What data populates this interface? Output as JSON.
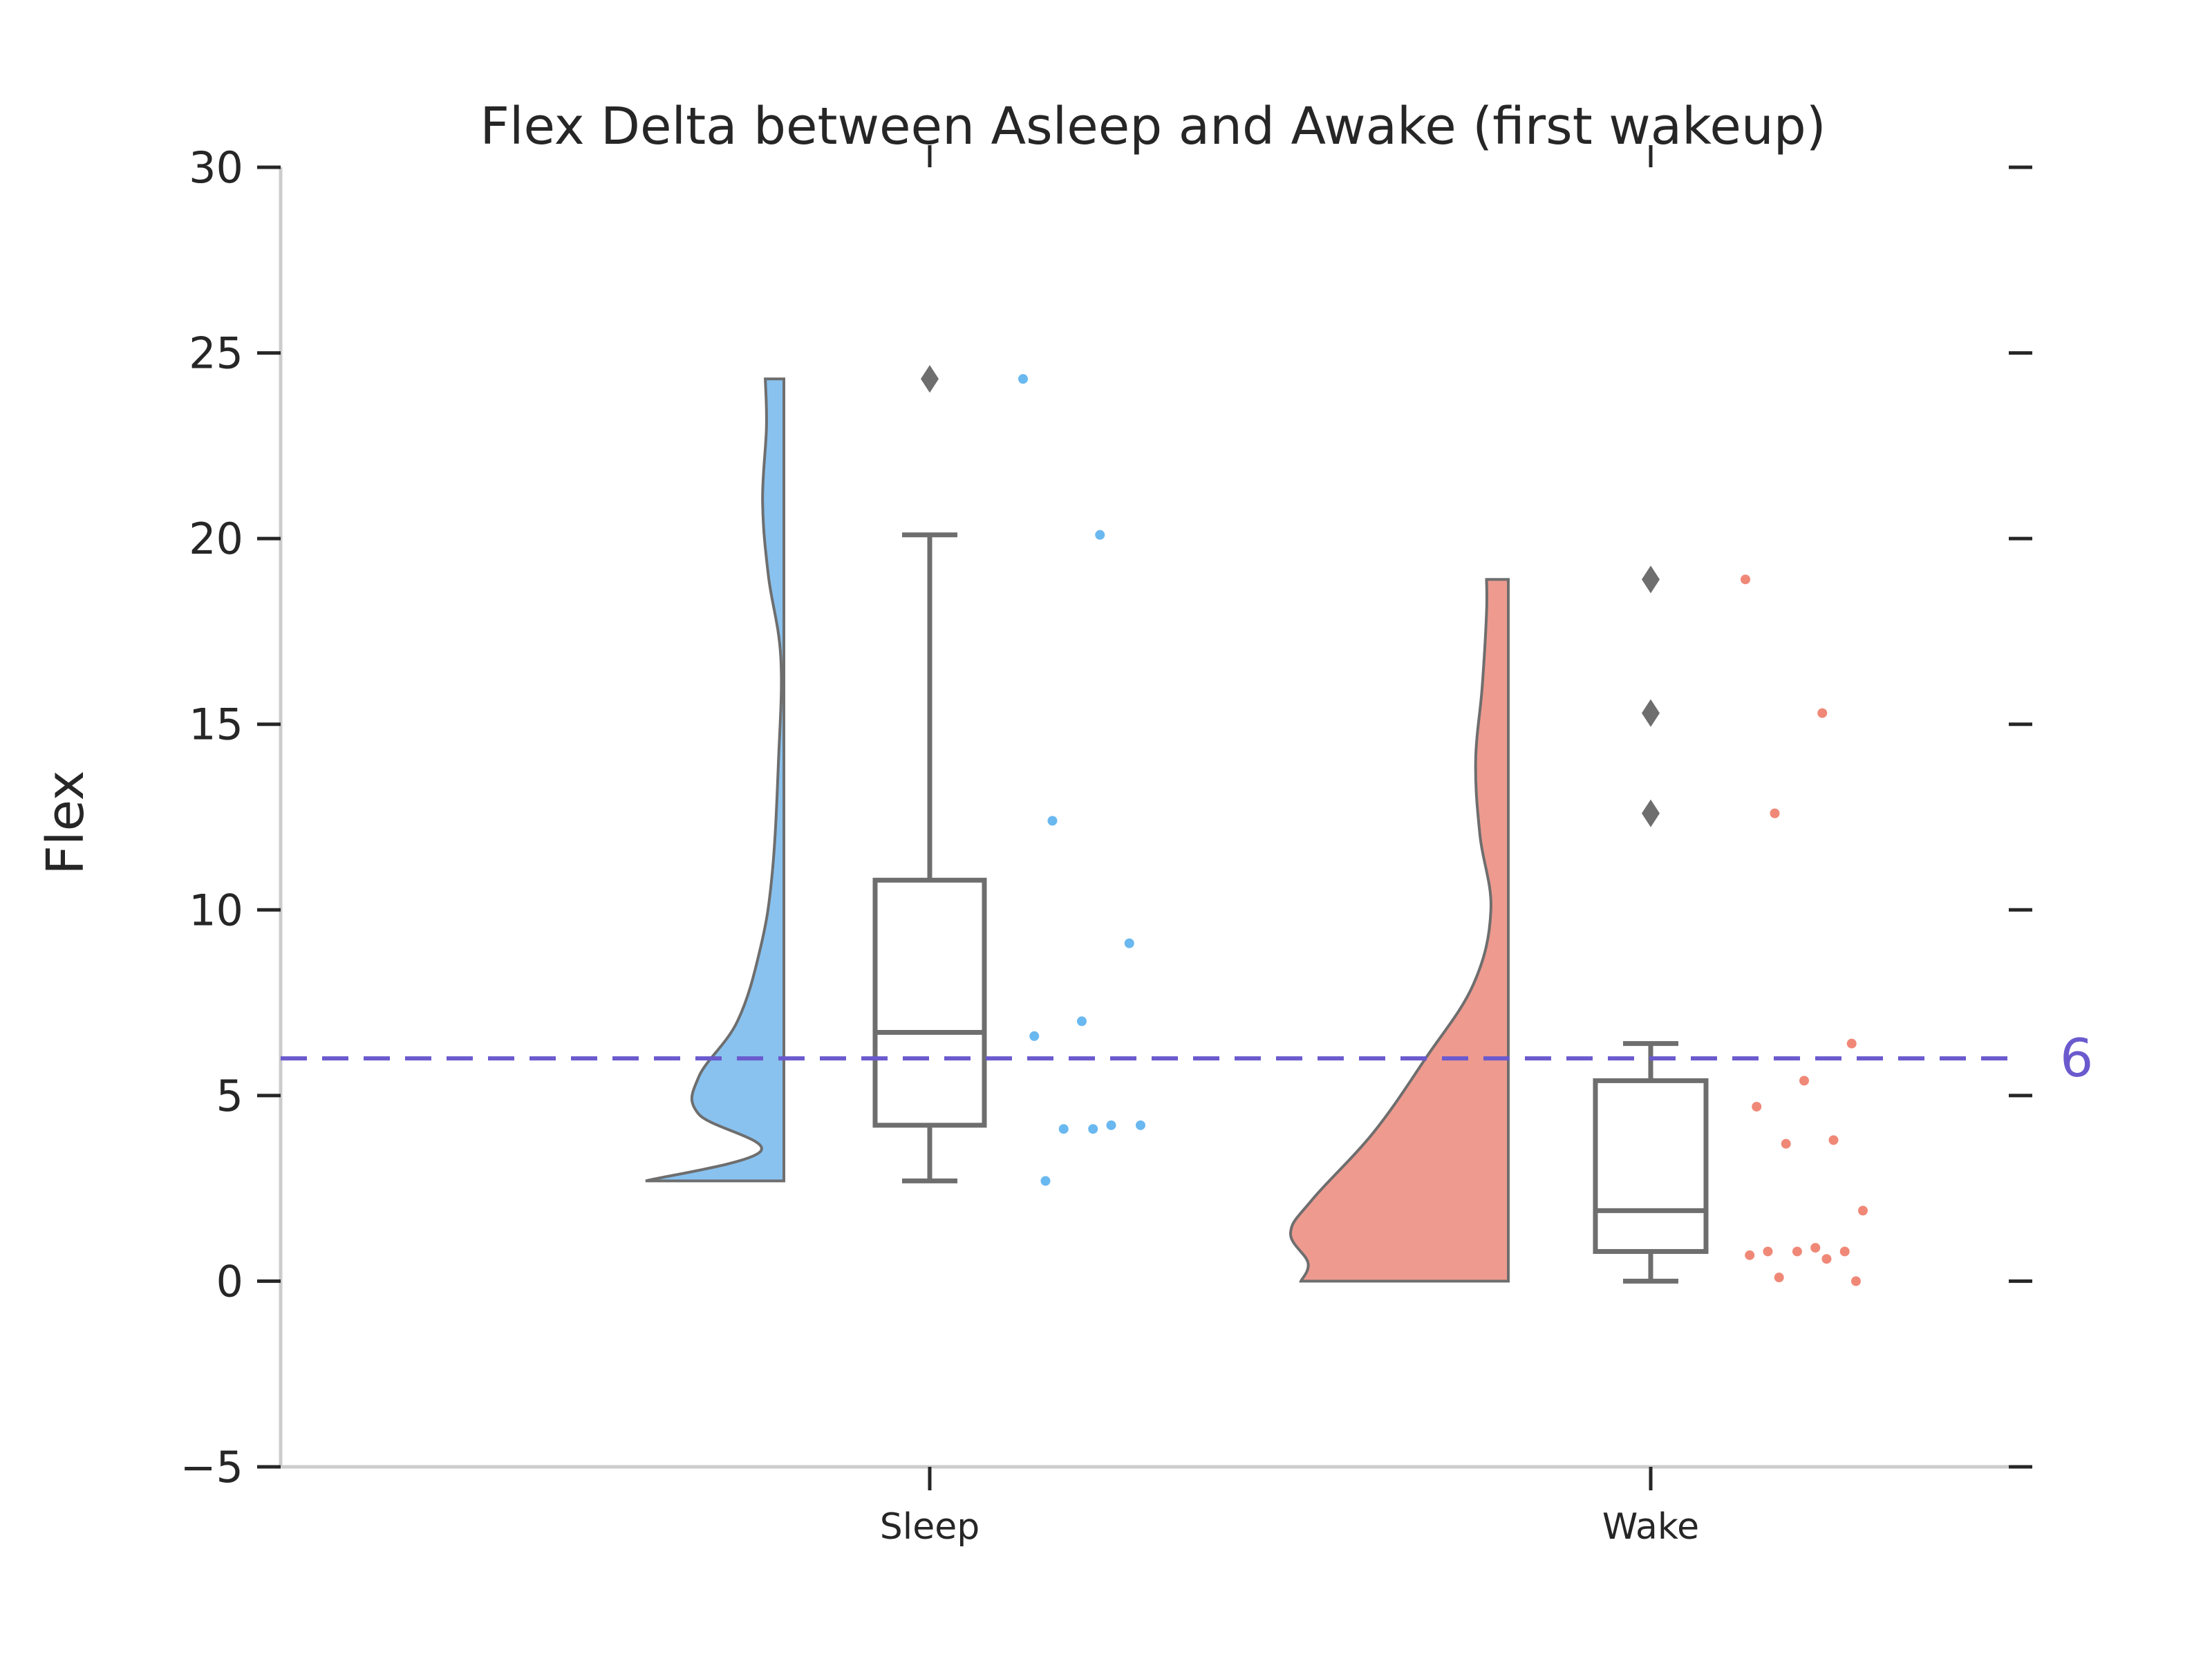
{
  "chart_data": {
    "type": "raincloud",
    "title": "Flex Delta between Asleep and Awake (first wakeup)",
    "xlabel": "",
    "ylabel": "Flex",
    "ylim": [
      -5,
      30
    ],
    "yticks": [
      -5,
      0,
      5,
      10,
      15,
      20,
      25,
      30
    ],
    "ytick_labels": [
      "−5",
      "0",
      "5",
      "10",
      "15",
      "20",
      "25",
      "30"
    ],
    "categories": [
      "Sleep",
      "Wake"
    ],
    "reference_line": {
      "value": 6,
      "label": "6",
      "color": "#6a5acd"
    },
    "colors": {
      "Sleep": "#89c2ef",
      "Wake": "#ee9a8f",
      "Sleep_points": "#6ab8f0",
      "Wake_points": "#f08878",
      "box": "#6e6e6e",
      "axis": "#cccccc"
    },
    "series": [
      {
        "category": "Sleep",
        "points": [
          24.3,
          20.1,
          12.4,
          9.1,
          7.0,
          6.6,
          4.2,
          4.1,
          4.2,
          4.1,
          2.7
        ],
        "box": {
          "q1": 4.2,
          "median": 6.7,
          "q3": 10.8,
          "whisker_low": 2.7,
          "whisker_high": 20.1
        },
        "outliers": [
          24.3
        ],
        "density_range": [
          2.7,
          24.3
        ]
      },
      {
        "category": "Wake",
        "points": [
          18.9,
          15.3,
          12.6,
          6.4,
          5.4,
          4.7,
          3.8,
          3.7,
          1.9,
          0.9,
          0.8,
          0.8,
          0.8,
          0.7,
          0.6,
          0.1,
          0.0
        ],
        "box": {
          "q1": 0.8,
          "median": 1.9,
          "q3": 5.4,
          "whisker_low": 0.0,
          "whisker_high": 6.4
        },
        "outliers": [
          18.9,
          15.3,
          12.6
        ],
        "density_range": [
          0.0,
          18.9
        ]
      }
    ]
  }
}
